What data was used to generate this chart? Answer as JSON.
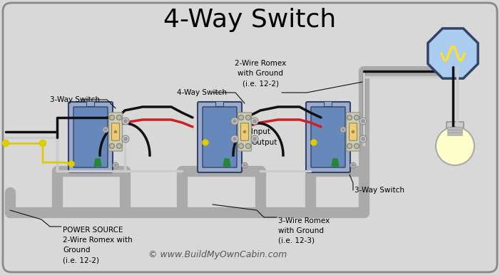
{
  "title": "4-Way Switch",
  "title_fontsize": 26,
  "bg_color": "#d8d8d8",
  "border_color": "#888888",
  "copyright": "© www.BuildMyOwnCabin.com",
  "label_sw1": "3-Way Switch",
  "label_sw2": "4-Way Switch",
  "label_sw3": "3-Way Switch",
  "label_power": "POWER SOURCE\n2-Wire Romex with\nGround\n(i.e. 12-2)",
  "label_romex_top": "2-Wire Romex\nwith Ground\n(i.e. 12-2)",
  "label_romex_bot": "3-Wire Romex\nwith Ground\n(i.e. 12-3)",
  "label_input": "Input",
  "label_output": "Output",
  "w_black": "#111111",
  "w_red": "#cc2222",
  "w_white": "#cccccc",
  "w_yellow": "#ddcc00",
  "w_green": "#226622",
  "conduit": "#aaaaaa",
  "box_outer": "#99aacc",
  "box_inner": "#6688bb",
  "box_edge": "#334466",
  "sw_face": "#eecc77",
  "sw_edge": "#998844",
  "screw_face": "#cccccc",
  "screw_edge": "#888888",
  "oct_face": "#aaccee",
  "oct_edge": "#334466",
  "bulb_face": "#ffffcc",
  "filament": "#ffdd33"
}
